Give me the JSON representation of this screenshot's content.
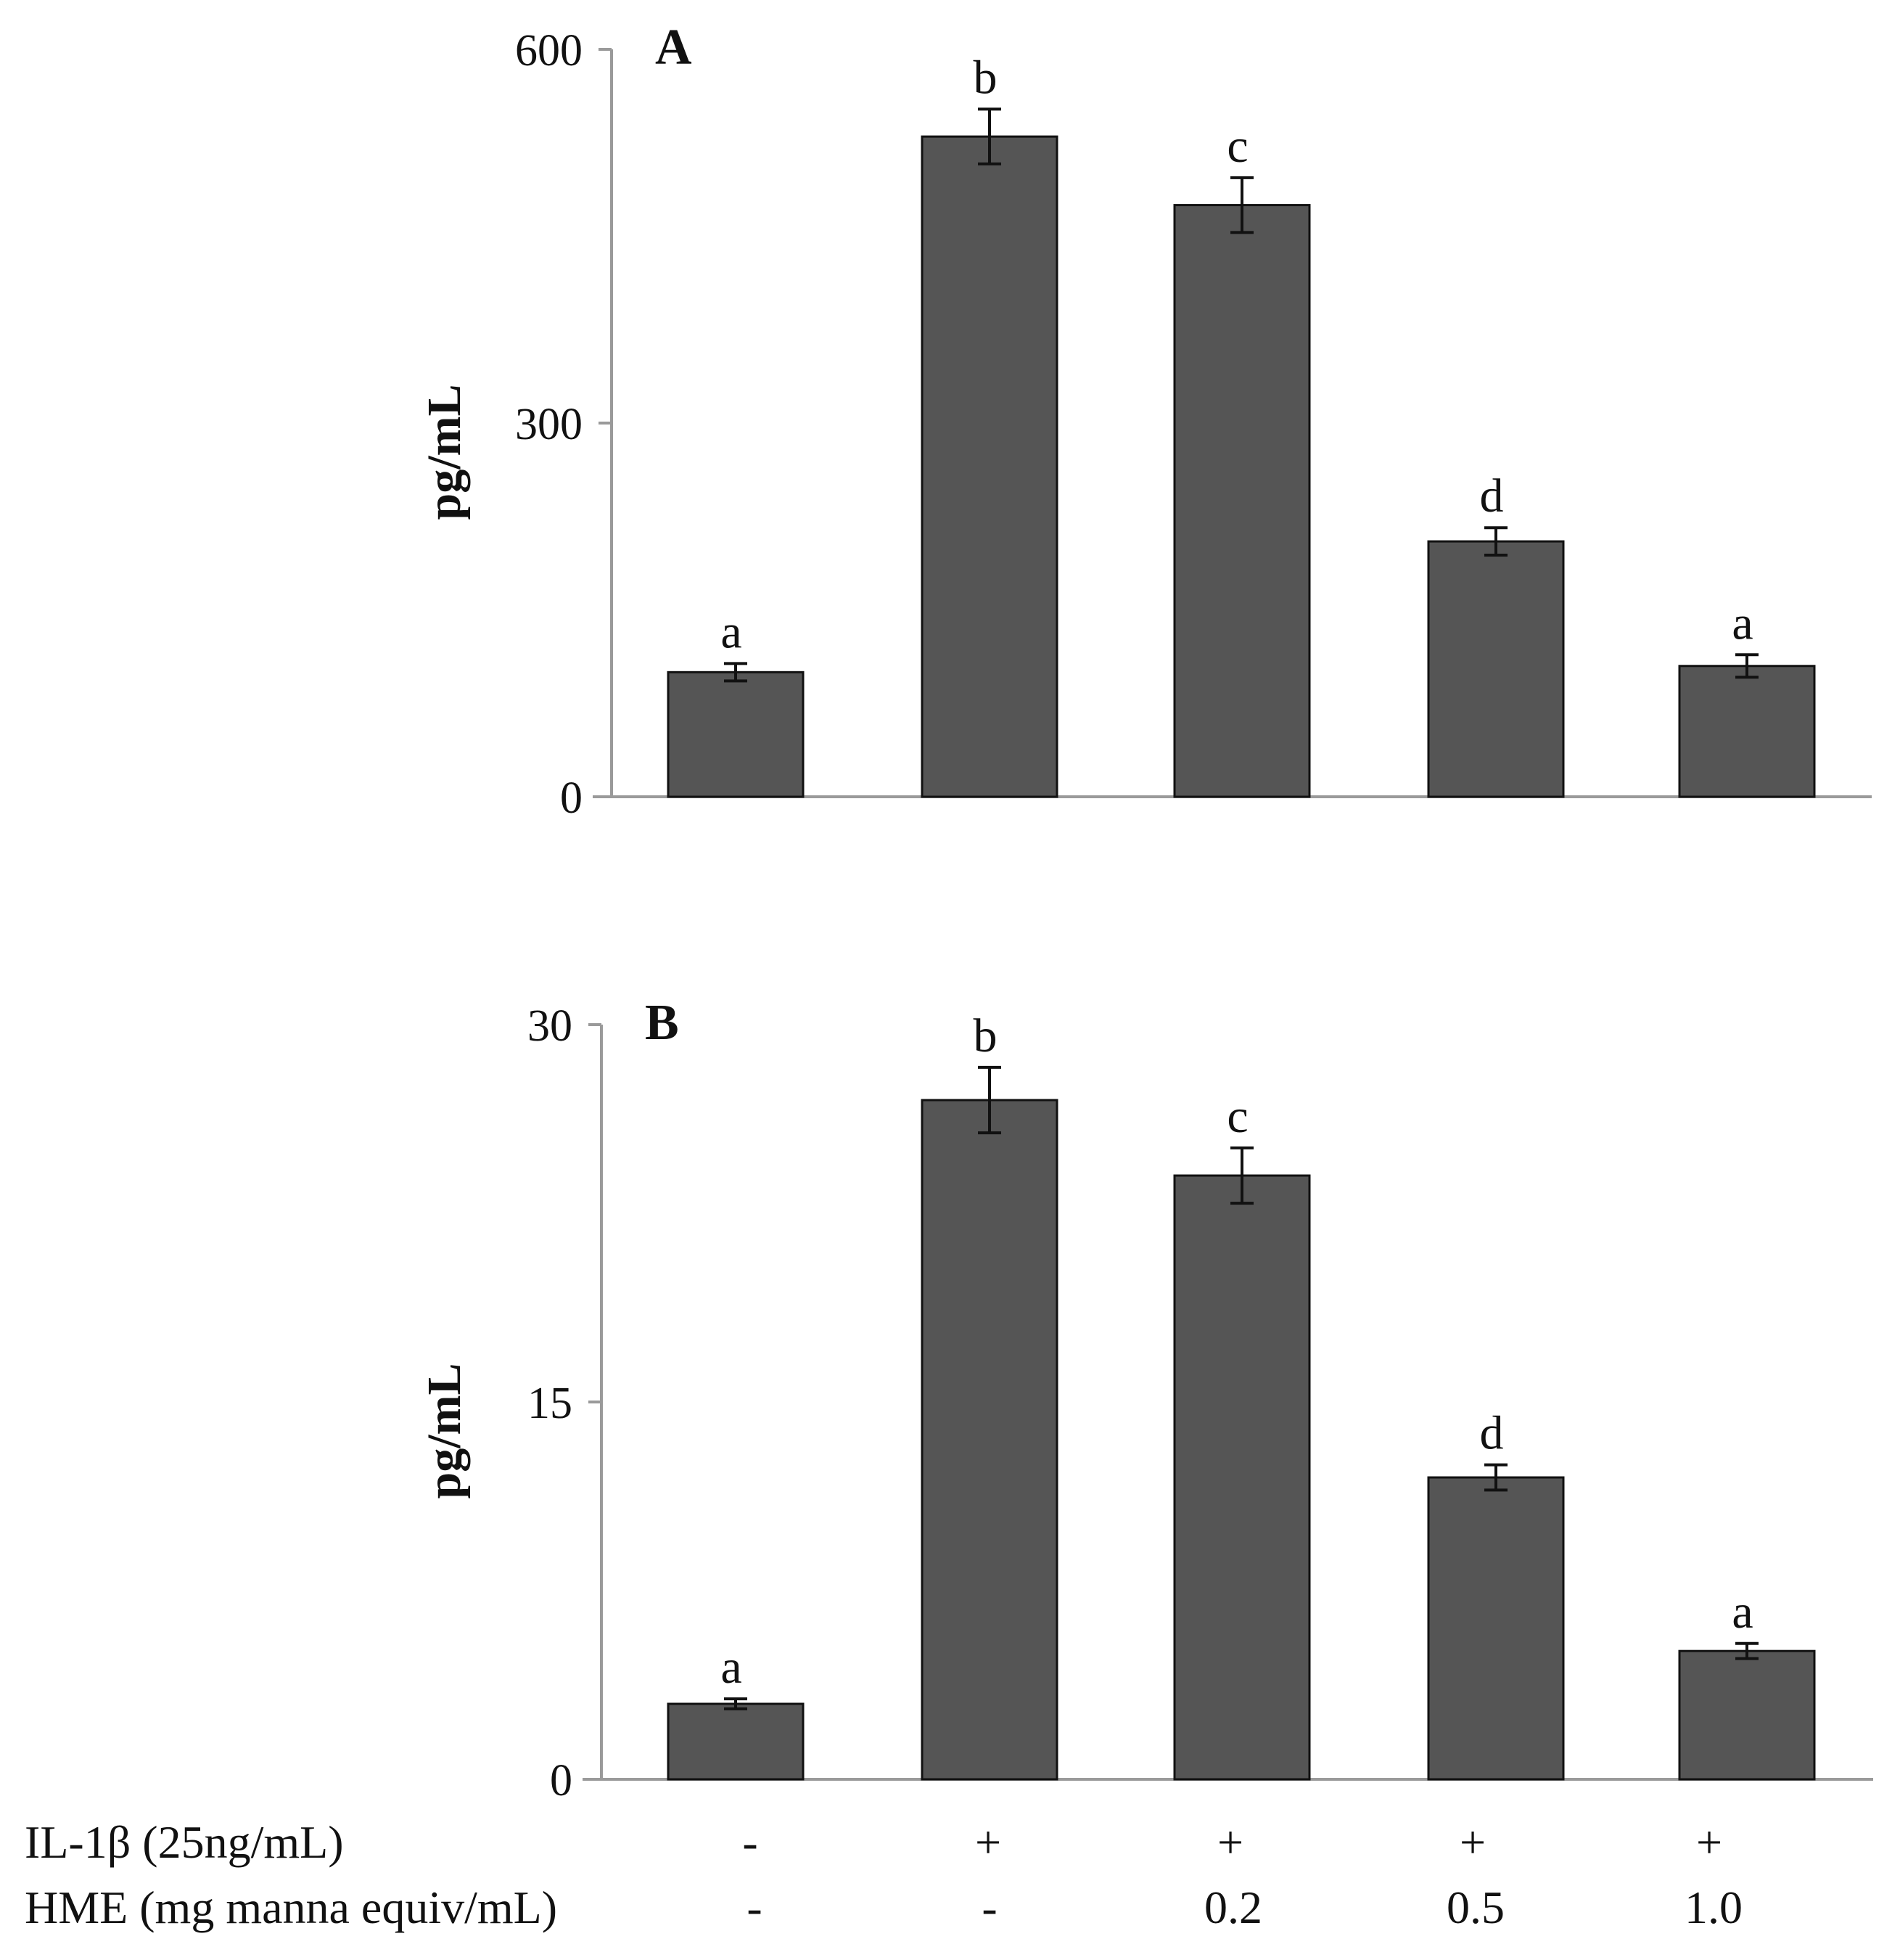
{
  "chart_data": [
    {
      "type": "bar",
      "panel_label": "A",
      "ylabel": "pg/mL",
      "ylim": [
        0,
        600
      ],
      "yticks": [
        "0",
        "300",
        "600"
      ],
      "bar_color": "#555555",
      "values": [
        100,
        530,
        475,
        205,
        105
      ],
      "errors": [
        7,
        22,
        22,
        11,
        9
      ],
      "significance": [
        "a",
        "b",
        "c",
        "d",
        "a"
      ]
    },
    {
      "type": "bar",
      "panel_label": "B",
      "ylabel": "pg/mL",
      "ylim": [
        0,
        30
      ],
      "yticks": [
        "0",
        "15",
        "30"
      ],
      "bar_color": "#555555",
      "values": [
        3,
        27,
        24,
        12,
        5.1
      ],
      "errors": [
        0.2,
        1.3,
        1.1,
        0.5,
        0.3
      ],
      "significance": [
        "a",
        "b",
        "c",
        "d",
        "a"
      ]
    }
  ],
  "treatments": [
    {
      "label": "IL-1β (25ng/mL)",
      "values": [
        "-",
        "+",
        "+",
        "+",
        "+"
      ]
    },
    {
      "label": "HME (mg manna equiv/mL)",
      "values": [
        "-",
        "-",
        "0.2",
        "0.5",
        "1.0"
      ]
    }
  ]
}
